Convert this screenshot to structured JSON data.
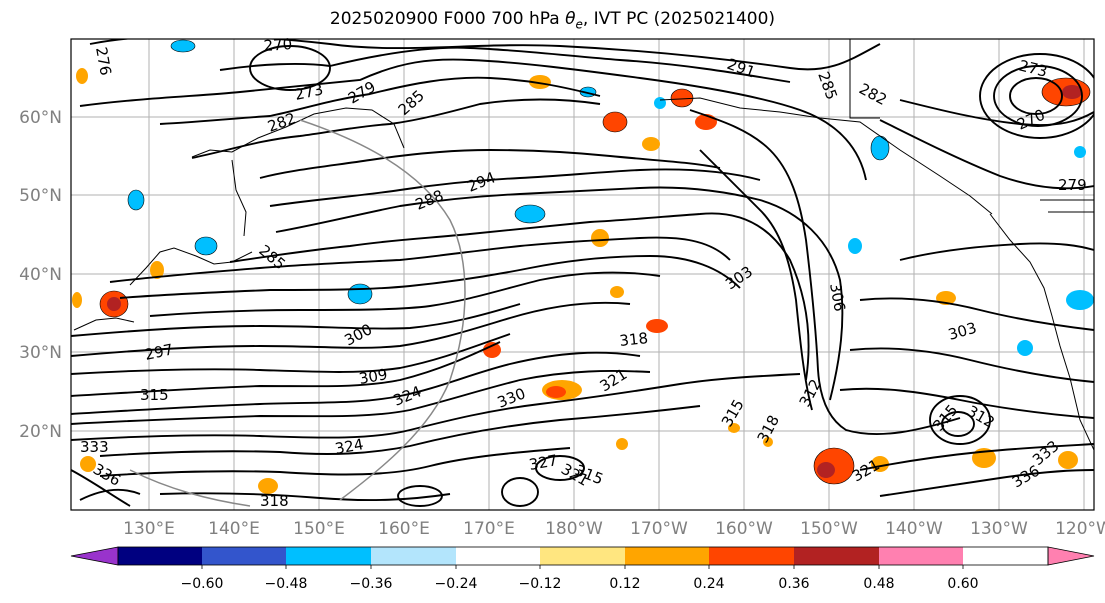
{
  "title": {
    "prefix": "2025020900 F000 700 hPa ",
    "theta_symbol": "θ",
    "theta_subscript": "e",
    "suffix": ", IVT PC (2025021400)"
  },
  "map": {
    "lat_labels": [
      "60°N",
      "50°N",
      "40°N",
      "30°N",
      "20°N"
    ],
    "lon_labels": [
      "130°E",
      "140°E",
      "150°E",
      "160°E",
      "170°E",
      "180°W",
      "170°W",
      "160°W",
      "150°W",
      "140°W",
      "130°W",
      "120°W"
    ],
    "contour_labels": [
      "270",
      "276",
      "273",
      "279",
      "285",
      "291",
      "285",
      "282",
      "273",
      "270",
      "279",
      "282",
      "294",
      "288",
      "285",
      "297",
      "300",
      "303",
      "303",
      "306",
      "309",
      "318",
      "315",
      "324",
      "330",
      "321",
      "315",
      "318",
      "312",
      "312",
      "315",
      "333",
      "336",
      "324",
      "327",
      "321",
      "318",
      "315",
      "321",
      "336",
      "333"
    ]
  },
  "colorbar": {
    "tick_labels": [
      "−0.60",
      "−0.48",
      "−0.36",
      "−0.24",
      "−0.12",
      "0.12",
      "0.24",
      "0.36",
      "0.48",
      "0.60"
    ],
    "colors": [
      "#9933cc",
      "#000080",
      "#3355cc",
      "#00bfff",
      "#b3e5fc",
      "#ffffff",
      "#ffe680",
      "#ffa500",
      "#ff4500",
      "#b22222",
      "#ff80b0",
      "#ff80b0"
    ],
    "extend": "both"
  }
}
